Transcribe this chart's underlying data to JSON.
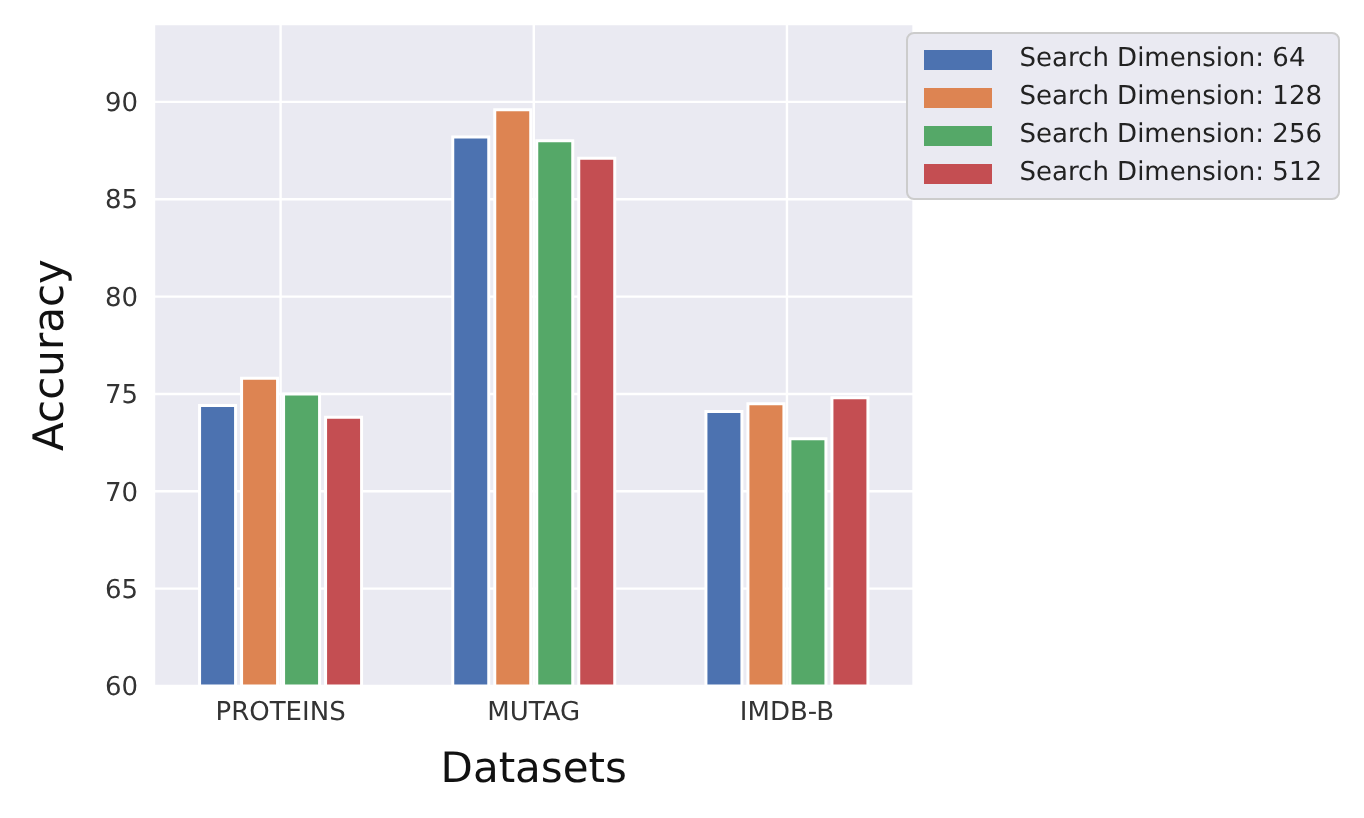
{
  "chart_data": {
    "type": "bar",
    "xlabel": "Datasets",
    "ylabel": "Accuracy",
    "categories": [
      "PROTEINS",
      "MUTAG",
      "IMDB-B"
    ],
    "series": [
      {
        "name": "Search Dimension: 64",
        "color": "#4c72b0",
        "values": [
          74.4,
          88.2,
          74.1
        ]
      },
      {
        "name": "Search Dimension: 128",
        "color": "#dd8452",
        "values": [
          75.8,
          89.6,
          74.5
        ]
      },
      {
        "name": "Search Dimension: 256",
        "color": "#55a868",
        "values": [
          75.0,
          88.0,
          72.7
        ]
      },
      {
        "name": "Search Dimension: 512",
        "color": "#c44e52",
        "values": [
          73.8,
          87.1,
          74.8
        ]
      }
    ],
    "ylim": [
      60,
      94
    ],
    "yticks": [
      60,
      65,
      70,
      75,
      80,
      85,
      90
    ],
    "grid": true,
    "legend": "top right"
  }
}
